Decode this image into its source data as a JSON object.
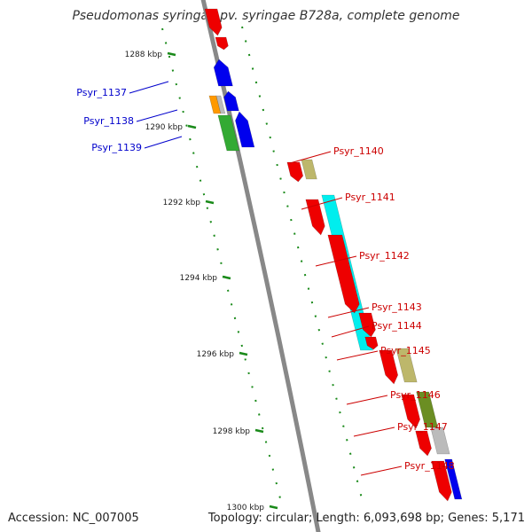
{
  "title": "Pseudomonas syringae pv. syringae B728a, complete genome",
  "footer": {
    "accession": "Accession: NC_007005",
    "summary": "Topology: circular; Length: 6,093,698 bp; Genes: 5,171"
  },
  "colors": {
    "backbone": "#888888",
    "tick": "#1a8a1a",
    "gene_label_left": "#0000cc",
    "gene_label_right": "#cc0000"
  },
  "ticks": [
    {
      "label": "1288 kbp",
      "pos_kbp": 1288
    },
    {
      "label": "1290 kbp",
      "pos_kbp": 1290
    },
    {
      "label": "1292 kbp",
      "pos_kbp": 1292
    },
    {
      "label": "1294 kbp",
      "pos_kbp": 1294
    },
    {
      "label": "1296 kbp",
      "pos_kbp": 1296
    },
    {
      "label": "1298 kbp",
      "pos_kbp": 1298
    },
    {
      "label": "1300 kbp",
      "pos_kbp": 1300
    }
  ],
  "gene_labels": [
    {
      "id": "Psyr_1137",
      "side": "left"
    },
    {
      "id": "Psyr_1138",
      "side": "left"
    },
    {
      "id": "Psyr_1139",
      "side": "left"
    },
    {
      "id": "Psyr_1140",
      "side": "right"
    },
    {
      "id": "Psyr_1141",
      "side": "right"
    },
    {
      "id": "Psyr_1142",
      "side": "right"
    },
    {
      "id": "Psyr_1143",
      "side": "right"
    },
    {
      "id": "Psyr_1144",
      "side": "right"
    },
    {
      "id": "Psyr_1145",
      "side": "right"
    },
    {
      "id": "Psyr_1146",
      "side": "right"
    },
    {
      "id": "Psyr_1147",
      "side": "right"
    },
    {
      "id": "Psyr_1148",
      "side": "right"
    }
  ],
  "feature_colors": {
    "red": "#ee0000",
    "blue": "#0000ee",
    "orange": "#ff9900",
    "green": "#33aa33",
    "khaki": "#bdb76b",
    "cyan": "#00eeee",
    "olive": "#6b8e23",
    "gray": "#bbbbbb"
  }
}
